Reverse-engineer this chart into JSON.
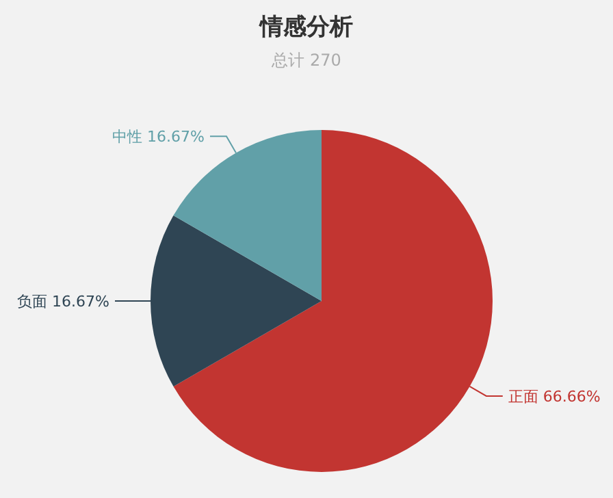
{
  "chart_data": {
    "type": "pie",
    "title": "情感分析",
    "subtitle": "总计 270",
    "categories": [
      "正面",
      "负面",
      "中性"
    ],
    "values": [
      66.66,
      16.67,
      16.67
    ],
    "value_labels": [
      "66.66%",
      "16.67%",
      "16.67%"
    ],
    "colors": [
      "#c23531",
      "#2f4554",
      "#61a0a8"
    ]
  }
}
